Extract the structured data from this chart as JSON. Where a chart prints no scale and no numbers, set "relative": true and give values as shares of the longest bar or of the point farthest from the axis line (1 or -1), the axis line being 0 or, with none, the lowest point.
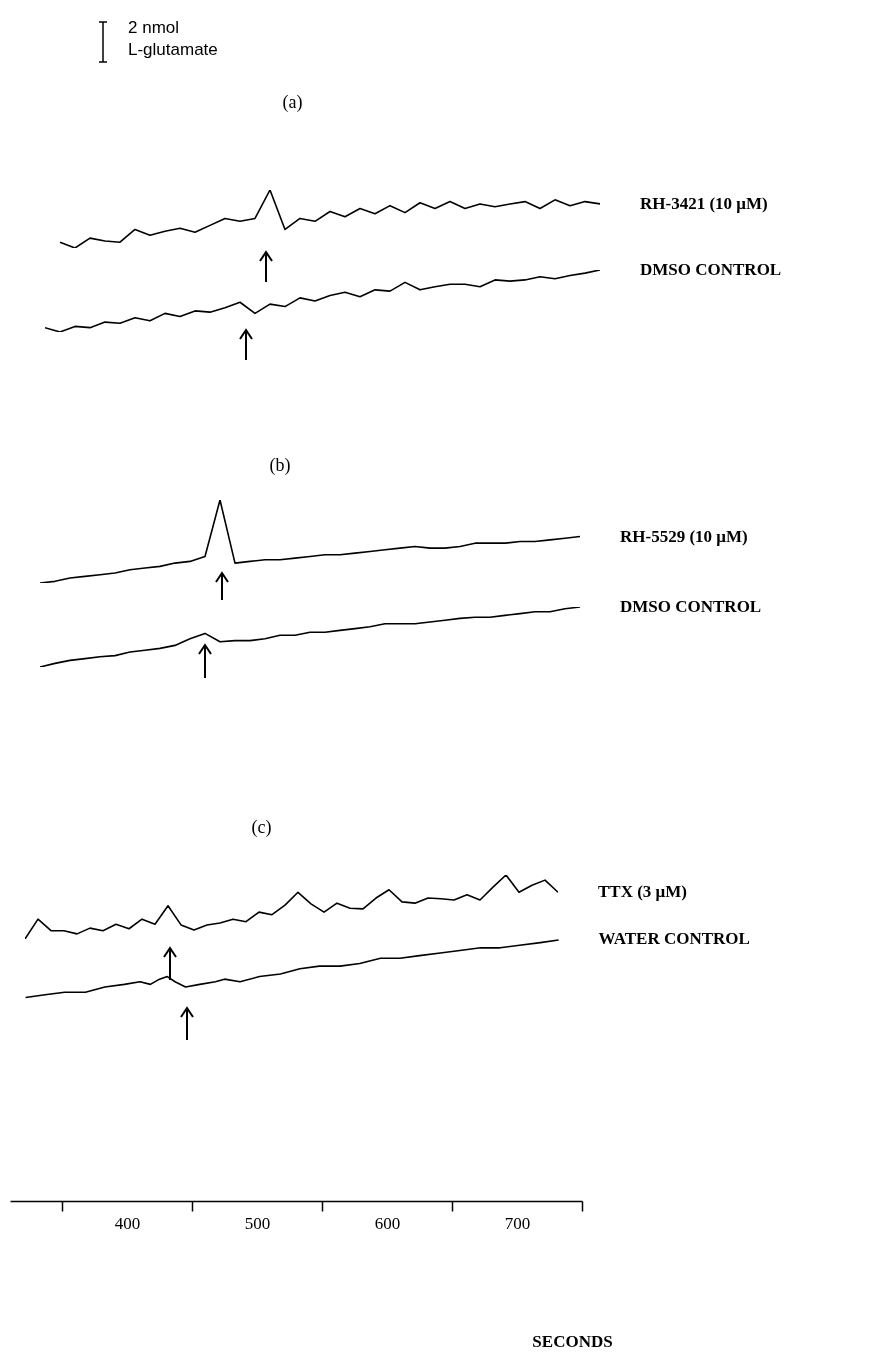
{
  "chart_data": [
    {
      "type": "line",
      "title": "(a)",
      "relative": true,
      "annotations": [
        "2 nmol",
        "L-glutamate"
      ],
      "categories": [
        null,
        null,
        null,
        null,
        null,
        null,
        null,
        null,
        null,
        null,
        null,
        null,
        null,
        null,
        null,
        null,
        null,
        null,
        null,
        null,
        null,
        null,
        null,
        null,
        null,
        null,
        null,
        null,
        null,
        null,
        null,
        null,
        null,
        null,
        null,
        null,
        null,
        null
      ],
      "series": [
        {
          "name": "RH-3421 (10 μM)",
          "color": "#000000",
          "values": [
            null,
            0.1,
            0.0,
            0.17,
            0.12,
            0.1,
            0.32,
            0.22,
            0.29,
            0.34,
            0.27,
            0.39,
            0.51,
            0.46,
            0.51,
            1.0,
            0.32,
            0.51,
            0.46,
            0.63,
            0.54,
            0.68,
            0.59,
            0.73,
            0.61,
            0.78,
            0.68,
            0.8,
            0.68,
            0.76,
            0.71,
            0.76,
            0.8,
            0.68,
            0.83,
            0.73,
            0.8,
            0.76
          ]
        }
      ]
    },
    {
      "type": "line",
      "relative": true,
      "categories": [
        null,
        null,
        null,
        null,
        null,
        null,
        null,
        null,
        null,
        null,
        null,
        null,
        null,
        null,
        null,
        null,
        null,
        null,
        null,
        null,
        null,
        null,
        null,
        null,
        null,
        null,
        null,
        null,
        null,
        null,
        null,
        null,
        null,
        null,
        null,
        null,
        null,
        null
      ],
      "series": [
        {
          "name": "DMSO CONTROL",
          "color": "#000000",
          "values": [
            0.07,
            0.0,
            0.09,
            0.07,
            0.16,
            0.14,
            0.23,
            0.18,
            0.3,
            0.25,
            0.34,
            0.32,
            0.39,
            0.48,
            0.3,
            0.45,
            0.41,
            0.55,
            0.5,
            0.59,
            0.64,
            0.57,
            0.68,
            0.66,
            0.8,
            0.68,
            0.73,
            0.77,
            0.77,
            0.73,
            0.84,
            0.82,
            0.84,
            0.89,
            0.86,
            0.91,
            0.95,
            1.0
          ]
        }
      ]
    },
    {
      "type": "line",
      "title": "(b)",
      "relative": true,
      "categories": [
        null,
        null,
        null,
        null,
        null,
        null,
        null,
        null,
        null,
        null,
        null,
        null,
        null,
        null,
        null,
        null,
        null,
        null,
        null,
        null,
        null,
        null,
        null,
        null,
        null,
        null,
        null,
        null,
        null,
        null,
        null,
        null,
        null,
        null,
        null,
        null,
        null
      ],
      "series": [
        {
          "name": "RH-5529 (10 μM)",
          "color": "#000000",
          "values": [
            0.0,
            0.02,
            0.06,
            0.08,
            0.1,
            0.12,
            0.16,
            0.18,
            0.2,
            0.24,
            0.26,
            0.32,
            1.0,
            0.24,
            0.26,
            0.28,
            0.28,
            0.3,
            0.32,
            0.34,
            0.34,
            0.36,
            0.38,
            0.4,
            0.42,
            0.44,
            0.42,
            0.42,
            0.44,
            0.48,
            0.48,
            0.48,
            0.5,
            0.5,
            0.52,
            0.54,
            0.56
          ]
        }
      ]
    },
    {
      "type": "line",
      "relative": true,
      "categories": [
        null,
        null,
        null,
        null,
        null,
        null,
        null,
        null,
        null,
        null,
        null,
        null,
        null,
        null,
        null,
        null,
        null,
        null,
        null,
        null,
        null,
        null,
        null,
        null,
        null,
        null,
        null,
        null,
        null,
        null,
        null,
        null,
        null,
        null,
        null,
        null,
        null
      ],
      "series": [
        {
          "name": "DMSO CONTROL",
          "color": "#000000",
          "values": [
            0.0,
            0.06,
            0.11,
            0.14,
            0.17,
            0.19,
            0.25,
            0.28,
            0.31,
            0.36,
            0.47,
            0.56,
            0.42,
            0.44,
            0.44,
            0.47,
            0.53,
            0.53,
            0.58,
            0.58,
            0.61,
            0.64,
            0.67,
            0.72,
            0.72,
            0.72,
            0.75,
            0.78,
            0.81,
            0.83,
            0.83,
            0.86,
            0.89,
            0.92,
            0.92,
            0.97,
            1.0
          ]
        }
      ]
    },
    {
      "type": "line",
      "title": "(c)",
      "relative": true,
      "categories": [
        null,
        null,
        null,
        null,
        null,
        null,
        null,
        null,
        null,
        null,
        null,
        null,
        null,
        null,
        null,
        null,
        null,
        null,
        null,
        null,
        null,
        null,
        null,
        null,
        null,
        null,
        null,
        null,
        null,
        null,
        null,
        null,
        null,
        null,
        null,
        null,
        null,
        null,
        null,
        null,
        null,
        null
      ],
      "series": [
        {
          "name": "TTX (3 μM)",
          "color": "#000000",
          "values": [
            0.0,
            0.31,
            0.13,
            0.13,
            0.08,
            0.17,
            0.13,
            0.23,
            0.16,
            0.31,
            0.23,
            0.52,
            0.22,
            0.14,
            0.22,
            0.25,
            0.31,
            0.27,
            0.42,
            0.38,
            0.53,
            0.73,
            0.55,
            0.42,
            0.56,
            0.48,
            0.47,
            0.64,
            0.77,
            0.58,
            0.56,
            0.64,
            0.63,
            0.61,
            0.69,
            0.61,
            0.81,
            1.0,
            0.73,
            0.84,
            0.92,
            0.73
          ]
        }
      ]
    },
    {
      "type": "line",
      "relative": true,
      "xlabel": "SECONDS",
      "xlim": [
        310,
        750
      ],
      "xticks": [
        {
          "value": 350,
          "label": null
        },
        400,
        {
          "value": 450,
          "label": null
        },
        500,
        {
          "value": 550,
          "label": null
        },
        600,
        {
          "value": 650,
          "label": null
        },
        700,
        {
          "value": 750,
          "label": null
        }
      ],
      "series": [
        {
          "name": "WATER CONTROL",
          "color": "#000000",
          "x": [
            322,
            337,
            352,
            368,
            383,
            398,
            410,
            418,
            425,
            431,
            437,
            445,
            456,
            468,
            475,
            487,
            502,
            518,
            533,
            548,
            564,
            579,
            595,
            610,
            625,
            641,
            656,
            672,
            687,
            702,
            718,
            732
          ],
          "values": [
            0.78,
            0.79,
            0.8,
            0.8,
            0.82,
            0.83,
            0.84,
            0.83,
            0.85,
            0.86,
            0.84,
            0.82,
            0.83,
            0.84,
            0.85,
            0.84,
            0.86,
            0.87,
            0.89,
            0.9,
            0.9,
            0.91,
            0.93,
            0.93,
            0.94,
            0.95,
            0.96,
            0.97,
            0.97,
            0.98,
            0.99,
            1.0
          ]
        }
      ]
    }
  ]
}
